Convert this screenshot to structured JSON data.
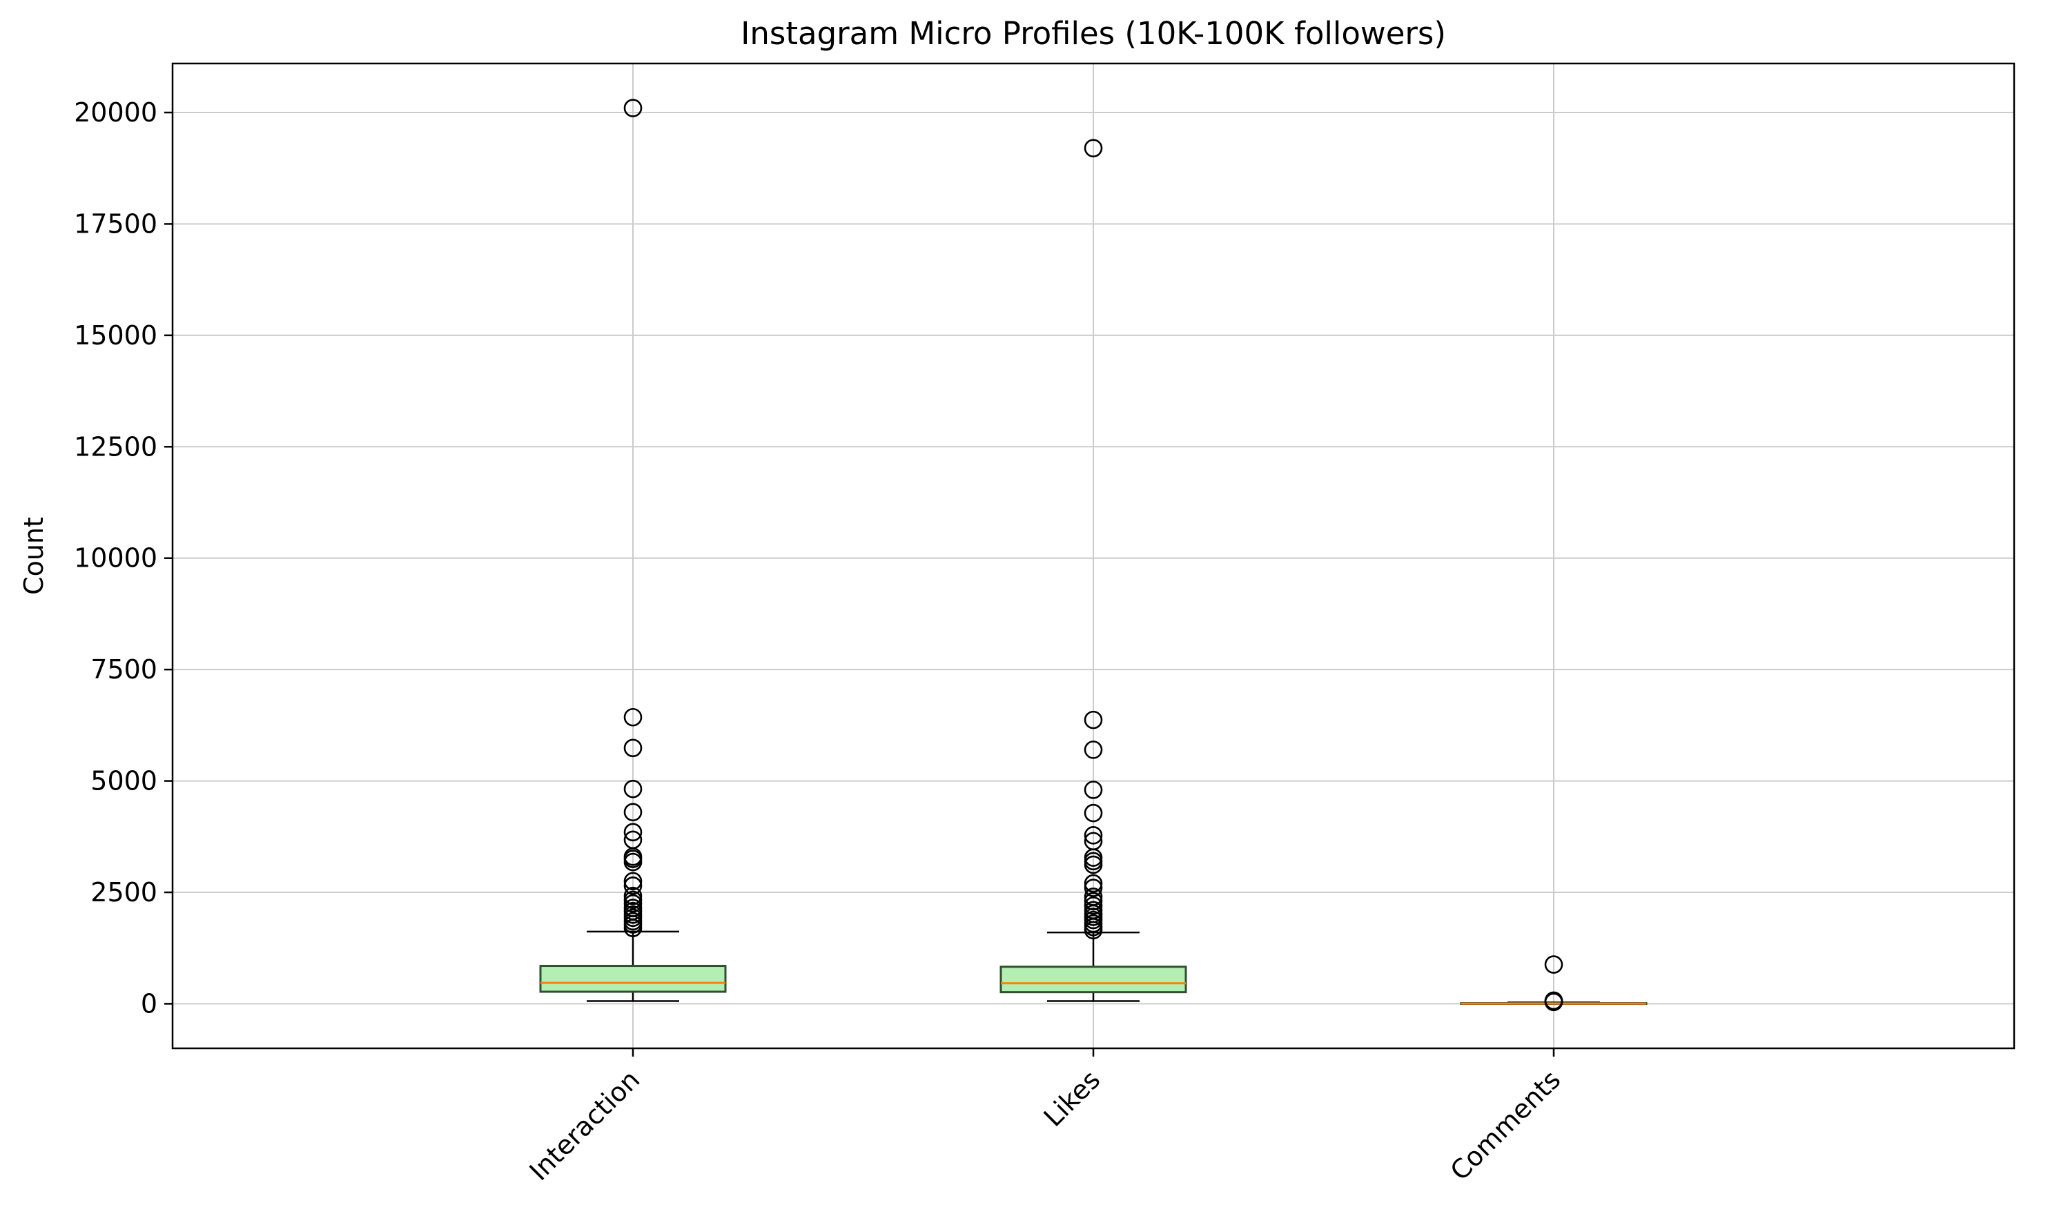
{
  "chart_data": {
    "type": "box",
    "title": "Instagram Micro Profiles (10K-100K followers)",
    "xlabel": "",
    "ylabel": "Count",
    "ylim": [
      -1000,
      21100
    ],
    "yticks": [
      0,
      2500,
      5000,
      7500,
      10000,
      12500,
      15000,
      17500,
      20000
    ],
    "ytick_labels": [
      "0",
      "2500",
      "5000",
      "7500",
      "10000",
      "12500",
      "15000",
      "17500",
      "20000"
    ],
    "grid": true,
    "categories": [
      "Interaction",
      "Likes",
      "Comments"
    ],
    "boxes": [
      {
        "name": "Interaction",
        "whisker_low": 60,
        "q1": 270,
        "median": 470,
        "q3": 850,
        "whisker_high": 1620,
        "outliers": [
          1700,
          1780,
          1850,
          1930,
          2000,
          2080,
          2150,
          2250,
          2330,
          2420,
          2650,
          2750,
          3180,
          3250,
          3300,
          3680,
          3850,
          4300,
          4820,
          5740,
          6430,
          20100
        ]
      },
      {
        "name": "Likes",
        "whisker_low": 60,
        "q1": 260,
        "median": 460,
        "q3": 830,
        "whisker_high": 1600,
        "outliers": [
          1650,
          1720,
          1800,
          1880,
          1950,
          2020,
          2100,
          2200,
          2300,
          2400,
          2600,
          2700,
          3120,
          3200,
          3280,
          3650,
          3780,
          4280,
          4800,
          5700,
          6370,
          19200
        ]
      },
      {
        "name": "Comments",
        "whisker_low": 0,
        "q1": 2,
        "median": 5,
        "q3": 14,
        "whisker_high": 30,
        "outliers": [
          40,
          50,
          60,
          70,
          880
        ]
      }
    ],
    "colors": {
      "box_fill": "#b3efb3",
      "box_edge": "#2f4f2f",
      "median": "#ff7f0e",
      "grid": "#cccccc",
      "axes": "#000000"
    }
  }
}
